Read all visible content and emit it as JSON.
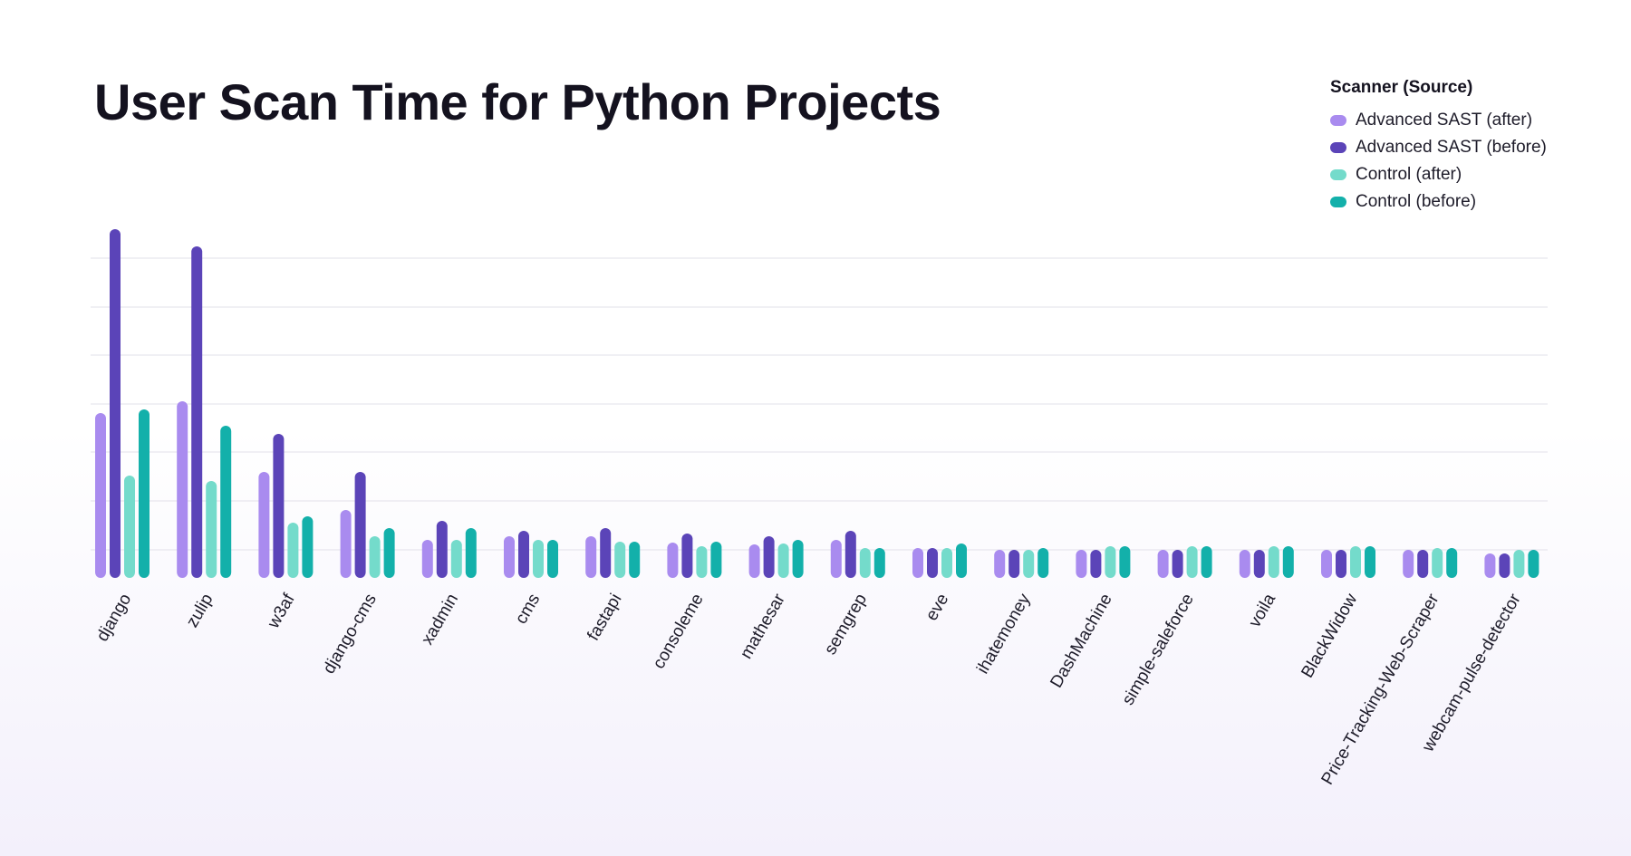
{
  "chart_data": {
    "type": "bar",
    "title": "User Scan Time for Python Projects",
    "xlabel": "",
    "ylabel": "",
    "ylim": [
      0,
      390
    ],
    "grid": true,
    "legend_title": "Scanner (Source)",
    "legend_position": "top-right",
    "categories": [
      "django",
      "zulip",
      "w3af",
      "django-cms",
      "xadmin",
      "cms",
      "fastapi",
      "consoleme",
      "mathesar",
      "semgrep",
      "eve",
      "ihatemoney",
      "DashMachine",
      "simple-saleforce",
      "voila",
      "BlackWidow",
      "Price-Tracking-Web-Scraper",
      "webcam-pulse-detector"
    ],
    "series": [
      {
        "name": "Advanced SAST (after)",
        "color": "#a98bef",
        "values": [
          182,
          195,
          117,
          75,
          42,
          46,
          46,
          39,
          37,
          42,
          33,
          31,
          31,
          31,
          31,
          31,
          31,
          27
        ]
      },
      {
        "name": "Advanced SAST (before)",
        "color": "#5b44b8",
        "values": [
          385,
          366,
          159,
          117,
          63,
          52,
          55,
          49,
          46,
          52,
          33,
          31,
          31,
          31,
          31,
          31,
          31,
          27
        ]
      },
      {
        "name": "Control (after)",
        "color": "#74dbcb",
        "values": [
          113,
          107,
          61,
          46,
          42,
          42,
          40,
          35,
          38,
          33,
          33,
          31,
          35,
          35,
          35,
          35,
          33,
          31
        ]
      },
      {
        "name": "Control (before)",
        "color": "#13b0aa",
        "values": [
          186,
          168,
          68,
          55,
          55,
          42,
          40,
          40,
          42,
          33,
          38,
          33,
          35,
          35,
          35,
          35,
          33,
          31
        ]
      }
    ]
  }
}
